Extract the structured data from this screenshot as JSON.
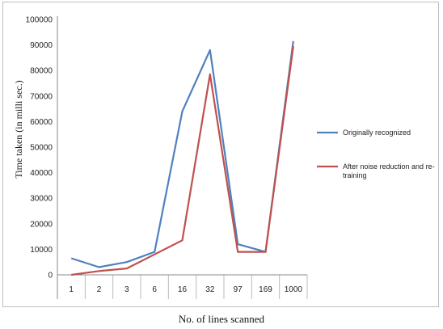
{
  "chart_data": {
    "type": "line",
    "categories": [
      "1",
      "2",
      "3",
      "6",
      "16",
      "32",
      "97",
      "169",
      "1000"
    ],
    "series": [
      {
        "name": "Originally recognized",
        "color": "#4f81bd",
        "values": [
          6500,
          3000,
          5000,
          9000,
          64000,
          88000,
          12000,
          9000,
          91500
        ]
      },
      {
        "name": "After noise reduction and re-training",
        "legend_lines": [
          "After noise reduction and re-",
          "training"
        ],
        "color": "#c0504d",
        "values": [
          0,
          1500,
          2500,
          8000,
          13500,
          78500,
          9000,
          9000,
          89500
        ]
      }
    ],
    "ylabel": "Time taken (in milli sec.)",
    "xlabel": "No. of lines scanned",
    "ylim": [
      0,
      100000
    ],
    "yticks": [
      "0",
      "10000",
      "20000",
      "30000",
      "40000",
      "50000",
      "60000",
      "70000",
      "80000",
      "90000",
      "100000"
    ],
    "grid": false,
    "legend_position": "right"
  }
}
